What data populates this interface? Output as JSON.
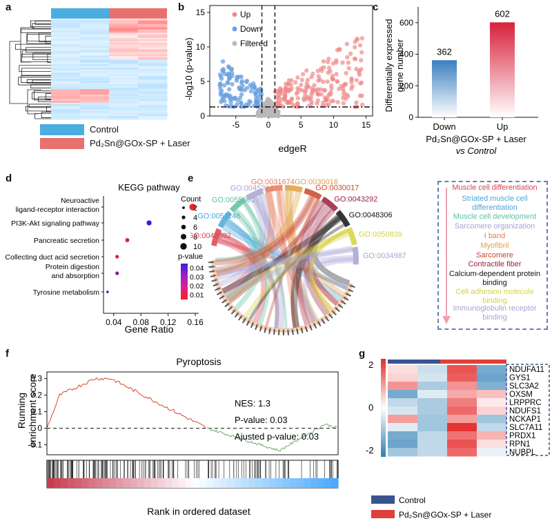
{
  "panels": {
    "a": "a",
    "b": "b",
    "c": "c",
    "d": "d",
    "e": "e",
    "f": "f",
    "g": "g"
  },
  "panel_a": {
    "legend": [
      {
        "label": "Control",
        "color": "#4aaee0"
      },
      {
        "label": "Pd₂Sn@GOx-SP + Laser",
        "color": "#e8706d"
      }
    ]
  },
  "chart_data": [
    {
      "id": "volcano",
      "type": "scatter",
      "xlabel": "edgeR",
      "ylabel": "-log10 (p-value)",
      "xlim": [
        -9,
        16
      ],
      "ylim": [
        0,
        16
      ],
      "xticks": [
        -5,
        0,
        5,
        10,
        15
      ],
      "yticks": [
        0,
        5,
        10,
        15
      ],
      "thresholds": {
        "x": [
          -1,
          1
        ],
        "y": 1.3
      },
      "legend": [
        {
          "label": "Up",
          "color": "#f08a8a"
        },
        {
          "label": "Down",
          "color": "#6a9fe0"
        },
        {
          "label": "Filtered",
          "color": "#b8b8b8"
        }
      ]
    },
    {
      "id": "deg-bar",
      "type": "bar",
      "categories": [
        "Down",
        "Up"
      ],
      "values": [
        362,
        602
      ],
      "value_labels": [
        "362",
        "602"
      ],
      "ylabel": "Differentially expressed gene number",
      "ylim": [
        0,
        700
      ],
      "yticks": [
        0,
        200,
        400,
        600
      ],
      "xcaption_line1": "Pd₂Sn@GOx-SP + Laser",
      "xcaption_line2": "vs Control",
      "colors": [
        "#3a7fc1",
        "#d8203a"
      ]
    },
    {
      "id": "kegg",
      "type": "scatter",
      "title": "KEGG pathway",
      "xlabel": "Gene Ratio",
      "xlim": [
        0.025,
        0.165
      ],
      "xticks": [
        0.04,
        0.08,
        0.12,
        0.16
      ],
      "xtick_labels": [
        "0.04",
        "0.08",
        "0.12",
        "0.16"
      ],
      "pathways": [
        {
          "name1": "Neuroactive",
          "name2": "ligand-receptor interaction",
          "ratio": 0.156,
          "count": 10,
          "p": 0.005
        },
        {
          "name1": "PI3K-Akt signaling pathway",
          "name2": "",
          "ratio": 0.092,
          "count": 7,
          "p": 0.045
        },
        {
          "name1": "Pancreatic secretion",
          "name2": "",
          "ratio": 0.06,
          "count": 5,
          "p": 0.01
        },
        {
          "name1": "Collecting duct acid secretion",
          "name2": "",
          "ratio": 0.045,
          "count": 4,
          "p": 0.01
        },
        {
          "name1": "Protein digestion",
          "name2": "and absorption",
          "ratio": 0.045,
          "count": 4,
          "p": 0.03
        },
        {
          "name1": "Tyrosine metabolism",
          "name2": "",
          "ratio": 0.031,
          "count": 2,
          "p": 0.035
        }
      ],
      "count_title": "Count",
      "count_legend": [
        "2",
        "4",
        "6",
        "8",
        "10"
      ],
      "p_title": "p-value",
      "p_legend": [
        "0.04",
        "0.03",
        "0.02",
        "0.01"
      ]
    },
    {
      "id": "gsea",
      "type": "line",
      "title": "Pyroptosis",
      "ylabel1": "Running",
      "ylabel2": "enrichment score",
      "xlabel": "Rank in ordered dataset",
      "yticks": [
        "0.3",
        "0.2",
        "0.1",
        "0",
        "-0.1"
      ],
      "ylim": [
        -0.16,
        0.34
      ],
      "stats": [
        "NES: 1.3",
        "P-value: 0.03",
        "Ajusted p-value: 0.03"
      ]
    },
    {
      "id": "heatmap-g",
      "type": "heatmap",
      "genes": [
        "NDUFA11",
        "GYS1",
        "SLC3A2",
        "OXSM",
        "LRPPRC",
        "NDUFS1",
        "NCKAP1",
        "SLC7A11",
        "PRDX1",
        "RPN1",
        "NUBPL"
      ],
      "values": [
        [
          0.3,
          -0.5,
          1.6,
          -1.3
        ],
        [
          0.4,
          -0.4,
          1.5,
          -1.4
        ],
        [
          1.0,
          -0.8,
          1.0,
          -1.2
        ],
        [
          -1.3,
          -0.3,
          0.8,
          0.6
        ],
        [
          -0.6,
          -0.8,
          1.2,
          0.2
        ],
        [
          -0.4,
          -0.8,
          1.4,
          0.4
        ],
        [
          0.9,
          -0.9,
          0.9,
          -0.9
        ],
        [
          -0.3,
          -0.9,
          1.9,
          -0.6
        ],
        [
          -1.3,
          -0.6,
          1.3,
          0.7
        ],
        [
          -1.4,
          -0.6,
          1.6,
          0.3
        ],
        [
          -0.9,
          -0.6,
          1.4,
          -0.2
        ]
      ],
      "scale_ticks": [
        "2",
        "0",
        "-2"
      ],
      "legend": [
        {
          "label": "Control",
          "color": "#3b5390"
        },
        {
          "label": "Pd₂Sn@GOx-SP + Laser",
          "color": "#e0403a"
        }
      ]
    }
  ],
  "volcano_legend": [
    "Up",
    "Down",
    "Filtered"
  ],
  "go_chord": {
    "terms": [
      {
        "id": "GO:0042692",
        "color": "#d9434f"
      },
      {
        "id": "GO:0051146",
        "color": "#4aa6d9"
      },
      {
        "id": "GO:0055001",
        "color": "#5cbfa3"
      },
      {
        "id": "GO:0045214",
        "color": "#a6a3d3"
      },
      {
        "id": "GO:0031674",
        "color": "#e57a5a"
      },
      {
        "id": "GO:0030016",
        "color": "#e0a03f"
      },
      {
        "id": "GO:0030017",
        "color": "#c8462a"
      },
      {
        "id": "GO:0043292",
        "color": "#9a1f3d"
      },
      {
        "id": "GO:0048306",
        "color": "#111111"
      },
      {
        "id": "GO:0050839",
        "color": "#d6d23c"
      },
      {
        "id": "GO:0034987",
        "color": "#a6a3d3"
      }
    ],
    "descriptions": [
      {
        "label": "Muscle cell differentiation",
        "color": "#d9434f"
      },
      {
        "label": "Striated muscle cell differentiation",
        "color": "#4aa6d9"
      },
      {
        "label": "Muscle cell development",
        "color": "#5cbfa3"
      },
      {
        "label": "Sarcomere organization",
        "color": "#a6a3d3"
      },
      {
        "label": "I band",
        "color": "#e57a5a"
      },
      {
        "label": "Myofibril",
        "color": "#e0a03f"
      },
      {
        "label": "Sarcomere",
        "color": "#c8462a"
      },
      {
        "label": "Contractile fiber",
        "color": "#9a1f3d"
      },
      {
        "label": "Calcium-dependent protein binding",
        "color": "#111111"
      },
      {
        "label": "Cell adhesion molecule binding",
        "color": "#d6d23c"
      },
      {
        "label": "Immunoglobulin receptor binding",
        "color": "#a6a3d3"
      }
    ]
  }
}
